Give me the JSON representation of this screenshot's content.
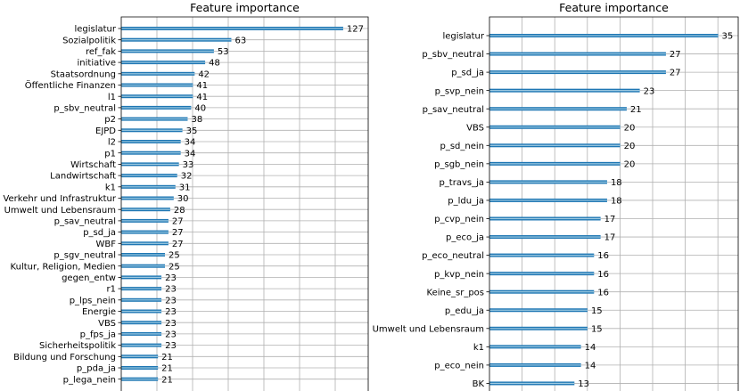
{
  "chart_data": [
    {
      "type": "bar",
      "orientation": "horizontal",
      "title": "Feature importance",
      "xlabel": "",
      "ylabel": "",
      "grid": true,
      "categories": [
        "legislatur",
        "Sozialpolitik",
        "ref_fak",
        "initiative",
        "Staatsordnung",
        "Öffentliche Finanzen",
        "l1",
        "p_sbv_neutral",
        "p2",
        "EJPD",
        "l2",
        "p1",
        "Wirtschaft",
        "Landwirtschaft",
        "k1",
        "Verkehr und Infrastruktur",
        "Umwelt und Lebensraum",
        "p_sav_neutral",
        "p_sd_ja",
        "WBF",
        "p_sgv_neutral",
        "Kultur, Religion, Medien",
        "gegen_entw",
        "r1",
        "p_lps_nein",
        "Energie",
        "VBS",
        "p_fps_ja",
        "Sicherheitspolitik",
        "Bildung und Forschung",
        "p_pda_ja",
        "p_lega_nein"
      ],
      "values": [
        127,
        63,
        53,
        48,
        42,
        41,
        41,
        40,
        38,
        35,
        34,
        34,
        33,
        32,
        31,
        30,
        28,
        27,
        27,
        27,
        25,
        25,
        23,
        23,
        23,
        23,
        23,
        23,
        23,
        21,
        21,
        21
      ],
      "bar_color": "#1f77b4"
    },
    {
      "type": "bar",
      "orientation": "horizontal",
      "title": "Feature importance",
      "xlabel": "",
      "ylabel": "",
      "grid": true,
      "categories": [
        "legislatur",
        "p_sbv_neutral",
        "p_sd_ja",
        "p_svp_nein",
        "p_sav_neutral",
        "VBS",
        "p_sd_nein",
        "p_sgb_nein",
        "p_travs_ja",
        "p_ldu_ja",
        "p_cvp_nein",
        "p_eco_ja",
        "p_eco_neutral",
        "p_kvp_nein",
        "Keine_sr_pos",
        "p_edu_ja",
        "Umwelt und Lebensraum",
        "k1",
        "p_eco_nein",
        "BK"
      ],
      "values": [
        35,
        27,
        27,
        23,
        21,
        20,
        20,
        20,
        18,
        18,
        17,
        17,
        16,
        16,
        16,
        15,
        15,
        14,
        14,
        13
      ],
      "bar_color": "#1f77b4"
    }
  ]
}
